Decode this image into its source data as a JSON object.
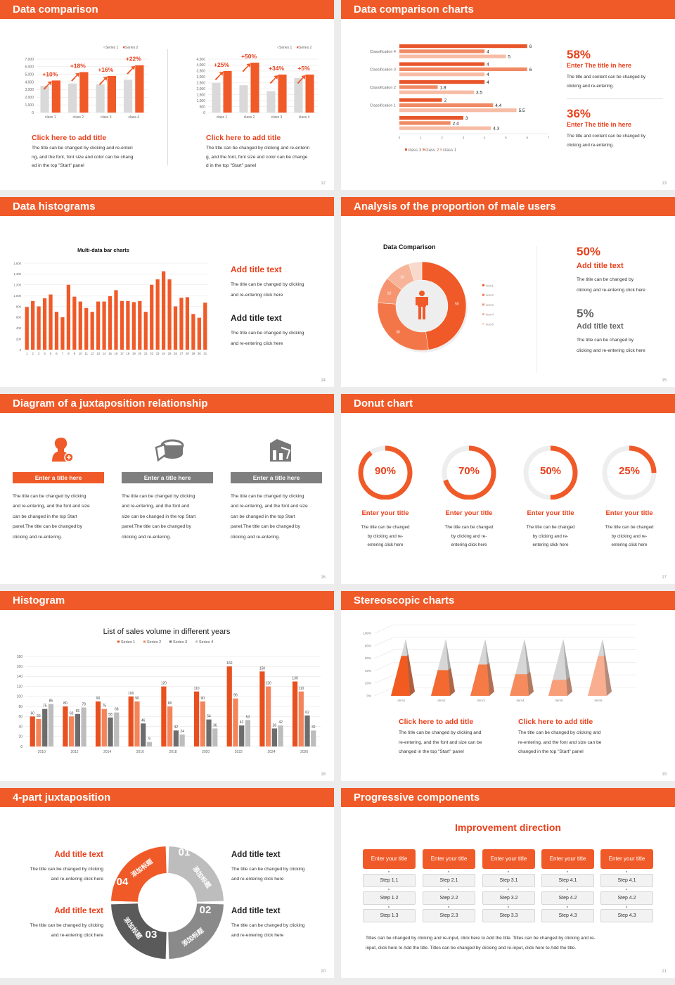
{
  "colors": {
    "accent": "#f05a28",
    "title_red": "#e8401c",
    "gray": "#7f7f7f"
  },
  "s12": {
    "header": "Data comparison",
    "page": "12",
    "left": {
      "title": "Click here to add title",
      "body": [
        "The title can be changed by clicking and re-enteri",
        "ng, and the font, font size and color can be chang",
        "ed in the top \"Start\" panel"
      ]
    },
    "right": {
      "title": "Click here to add title",
      "body": [
        "The title can be changed by clicking and re-enterin",
        "g, and the font, font size and color can be change",
        "d in the top \"Start\" panel"
      ]
    }
  },
  "s13": {
    "header": "Data comparison charts",
    "page": "13",
    "stats": [
      {
        "value": "58%",
        "title": "Enter The title in here",
        "body": [
          "The title and content can be changed by",
          "clicking and re-entering."
        ]
      },
      {
        "value": "36%",
        "title": "Enter The title in here",
        "body": [
          "The title and content can be changed by",
          "clicking and re-entering."
        ]
      }
    ]
  },
  "s14": {
    "header": "Data histograms",
    "page": "14",
    "blocks": [
      {
        "title": "Add title text",
        "body": [
          "The title can be changed by clicking",
          "and re-entering click here"
        ]
      },
      {
        "title": "Add title text",
        "body": [
          "The title can be changed by clicking",
          "and re-entering click here"
        ]
      }
    ]
  },
  "s15": {
    "header": "Analysis of the proportion of male users",
    "page": "15",
    "icon": "male-person-icon",
    "stats": [
      {
        "value": "50%",
        "title": "Add title text",
        "body": [
          "The title can be changed by",
          "clicking and re-entering click here"
        ]
      },
      {
        "value": "5%",
        "title": "Add title text",
        "body": [
          "The title can be changed by",
          "clicking and re-entering click here"
        ]
      }
    ]
  },
  "s16": {
    "header": "Diagram of a juxtaposition relationship",
    "page": "16",
    "items": [
      {
        "icon": "female-user-add-icon",
        "title": "Enter a title here",
        "color": "#f05a28",
        "body": [
          "The title can be changed by clicking",
          "and re-entering, and the font and size",
          "can be changed in the top Start",
          "panel.The title can be changed by",
          "clicking and re-entering."
        ]
      },
      {
        "icon": "pie-chart-3d-icon",
        "title": "Enter a title here",
        "color": "#7f7f7f",
        "body": [
          "The title can be changed by clicking",
          "and re-entering, and the font and",
          "size can be changed in the top Start",
          "panel.The title can be changed by",
          "clicking and re-entering."
        ]
      },
      {
        "icon": "building-chart-icon",
        "title": "Enter a title here",
        "color": "#7f7f7f",
        "body": [
          "The title can be changed by clicking",
          "and re-entering, and the font and size",
          "can be changed in the top Start",
          "panel.The title can be changed by",
          "clicking and re-entering."
        ]
      }
    ]
  },
  "s17": {
    "header": "Donut chart",
    "page": "17",
    "items": [
      {
        "value": 90,
        "label": "90%",
        "title": "Enter your title",
        "body": [
          "The title can be changed",
          "by clicking and re-",
          "entering click here"
        ]
      },
      {
        "value": 70,
        "label": "70%",
        "title": "Enter your title",
        "body": [
          "The title can be changed",
          "by clicking and re-",
          "entering click here"
        ]
      },
      {
        "value": 50,
        "label": "50%",
        "title": "Enter your title",
        "body": [
          "The title can be changed",
          "by clicking and re-",
          "entering click here"
        ]
      },
      {
        "value": 25,
        "label": "25%",
        "title": "Enter your title",
        "body": [
          "The title can be changed",
          "by clicking and re-",
          "entering click here"
        ]
      }
    ]
  },
  "s18": {
    "header": "Histogram",
    "page": "18"
  },
  "s19": {
    "header": "Stereoscopic charts",
    "page": "19",
    "blocks": [
      {
        "title": "Click here to add title",
        "body": [
          "The title can be changed by clicking and",
          "re-entering, and the font and size can be",
          "changed in the top \"Start\" panel"
        ]
      },
      {
        "title": "Click here to add title",
        "body": [
          "The title can be changed by clicking and",
          "re-entering, and the font and size can be",
          "changed in the top \"Start\" panel"
        ]
      }
    ]
  },
  "s20": {
    "header": "4-part juxtaposition",
    "page": "20",
    "segments": [
      {
        "num": "01",
        "text": "添加标题",
        "color": "#bdbdbd"
      },
      {
        "num": "02",
        "text": "添加标题",
        "color": "#8a8a8a"
      },
      {
        "num": "03",
        "text": "添加标题",
        "color": "#5a5a5a"
      },
      {
        "num": "04",
        "text": "添加标题",
        "color": "#f05a28"
      }
    ],
    "blocks": [
      {
        "title": "Add title text",
        "body": [
          "The title can be changed by clicking",
          "and re-entering click here"
        ]
      },
      {
        "title": "Add title text",
        "body": [
          "The title can be changed by clicking",
          "and re-entering click here"
        ]
      },
      {
        "title": "Add title text",
        "body": [
          "The title can be changed by clicking",
          "and re-entering click here"
        ]
      },
      {
        "title": "Add title text",
        "body": [
          "The title can be changed by clicking",
          "and re-entering click here"
        ]
      }
    ]
  },
  "s21": {
    "header": "Progressive components",
    "page": "21",
    "title": "Improvement direction",
    "columns": [
      {
        "title": "Enter your title",
        "steps": [
          "Step 1.1",
          "Step 1.2",
          "Step 1.3"
        ]
      },
      {
        "title": "Enter your title",
        "steps": [
          "Step 2.1",
          "Step 2.2",
          "Step 2.3"
        ]
      },
      {
        "title": "Enter your title",
        "steps": [
          "Step 3.1",
          "Step 3.2",
          "Step 3.3"
        ]
      },
      {
        "title": "Enter your title",
        "steps": [
          "Step 4.1",
          "Step 4.2",
          "Step 4.3"
        ]
      },
      {
        "title": "Enter your title",
        "steps": [
          "Step 4.1",
          "Step 4.2",
          "Step 4.3"
        ]
      }
    ],
    "body": [
      "Titles can be changed by clicking and re-input, click here to Add the title. Titles can be changed by clicking and re-",
      "input, click here to Add the title. Titles can be changed by clicking and re-input, click here to Add the title."
    ]
  },
  "chart_data": [
    {
      "type": "bar",
      "categories": [
        "class 1",
        "class 2",
        "class 3",
        "class 4"
      ],
      "series": [
        {
          "name": "Series 1",
          "values": [
            3500,
            3800,
            3700,
            4300
          ],
          "color": "#d9d9d9"
        },
        {
          "name": "Series 2",
          "values": [
            4200,
            5300,
            4800,
            6200
          ],
          "color": "#f05a28"
        }
      ],
      "ylim": [
        0,
        7000
      ],
      "ytick_step": 1000,
      "annotations": [
        "+10%",
        "+18%",
        "+16%",
        "+22%"
      ],
      "legend": "top-right",
      "grid": true
    },
    {
      "type": "bar",
      "categories": [
        "class 1",
        "class 2",
        "class 3",
        "class 4"
      ],
      "series": [
        {
          "name": "Series 1",
          "values": [
            2500,
            2300,
            1800,
            2900
          ],
          "color": "#d9d9d9"
        },
        {
          "name": "Series 2",
          "values": [
            3500,
            4200,
            3200,
            3200
          ],
          "color": "#f05a28"
        }
      ],
      "ylim": [
        0,
        4500
      ],
      "ytick_step": 500,
      "annotations": [
        "+25%",
        "+50%",
        "+34%",
        "+5%"
      ],
      "legend": "top-right",
      "grid": true
    },
    {
      "type": "bar",
      "orientation": "horizontal",
      "categories": [
        "Classification 4",
        "Classification 3",
        "Classification 2",
        "Classification 1",
        ""
      ],
      "series": [
        {
          "name": "class 3",
          "values": [
            6,
            4,
            4,
            2,
            3
          ],
          "color": "#e8552a"
        },
        {
          "name": "class 2",
          "values": [
            4,
            6,
            1.8,
            4.4,
            2.4
          ],
          "color": "#f08a64"
        },
        {
          "name": "class 1",
          "values": [
            5,
            4,
            3.5,
            5.5,
            4.3
          ],
          "color": "#f7bca5"
        }
      ],
      "xlim": [
        0,
        7
      ],
      "xtick_step": 1,
      "legend": "bottom"
    },
    {
      "type": "bar",
      "title": "Multi-data bar charts",
      "categories": [
        "1",
        "2",
        "3",
        "4",
        "5",
        "6",
        "7",
        "8",
        "9",
        "10",
        "11",
        "12",
        "13",
        "14",
        "15",
        "16",
        "17",
        "18",
        "19",
        "20",
        "21",
        "22",
        "23",
        "24",
        "25",
        "26",
        "27",
        "28",
        "29",
        "30",
        "31"
      ],
      "series": [
        {
          "values": [
            790,
            900,
            800,
            950,
            1020,
            700,
            600,
            1200,
            980,
            890,
            770,
            700,
            890,
            890,
            990,
            1100,
            900,
            900,
            880,
            900,
            700,
            1200,
            1300,
            1450,
            1300,
            800,
            960,
            970,
            660,
            590,
            870
          ],
          "color": "#f05a28"
        }
      ],
      "ylim": [
        0,
        1600
      ],
      "ytick_step": 200,
      "grid": true
    },
    {
      "type": "pie",
      "donut": true,
      "title": "Data Comparison",
      "labels": [
        "item1",
        "item2",
        "item3",
        "item4",
        "item5"
      ],
      "values": [
        50,
        30,
        10,
        10,
        5
      ],
      "data_labels": [
        "50",
        "30",
        "10",
        "10",
        ""
      ],
      "colors": [
        "#f05a28",
        "#f37649",
        "#f5946e",
        "#f7b499",
        "#f9d9cc"
      ],
      "legend": "right"
    },
    {
      "type": "bar",
      "title": "List of sales volume in different years",
      "categories": [
        "2010",
        "2012",
        "2014",
        "2016",
        "2018",
        "2020",
        "2022",
        "2024",
        "2026"
      ],
      "series": [
        {
          "name": "Series 1",
          "values": [
            60,
            80,
            90,
            100,
            120,
            110,
            160,
            150,
            130
          ],
          "color": "#e8501f"
        },
        {
          "name": "Series 2",
          "values": [
            55,
            60,
            75,
            90,
            80,
            90,
            96,
            120,
            110
          ],
          "color": "#f4845a"
        },
        {
          "name": "Series 3",
          "values": [
            75,
            65,
            58,
            46,
            32,
            54,
            42,
            36,
            62
          ],
          "color": "#6d6d6d"
        },
        {
          "name": "Series 4",
          "values": [
            85,
            78,
            68,
            9,
            24,
            36,
            53,
            42,
            32
          ],
          "color": "#bdbdbd"
        }
      ],
      "ylim": [
        0,
        180
      ],
      "ytick_step": 20,
      "legend": "top",
      "grid": true,
      "data_labels": true
    },
    {
      "type": "bar",
      "style": "3d-pyramid",
      "categories": [
        "item1",
        "item2",
        "item3",
        "item4",
        "item5",
        "item6"
      ],
      "values": [
        70,
        45,
        55,
        38,
        28,
        70
      ],
      "ylim": [
        0,
        100
      ],
      "ytick_step": 20,
      "unit": "%",
      "colors": [
        "#f25a1f",
        "#f3692f",
        "#f57a45",
        "#f68c5e",
        "#f89e78",
        "#f9ae8f"
      ]
    }
  ]
}
